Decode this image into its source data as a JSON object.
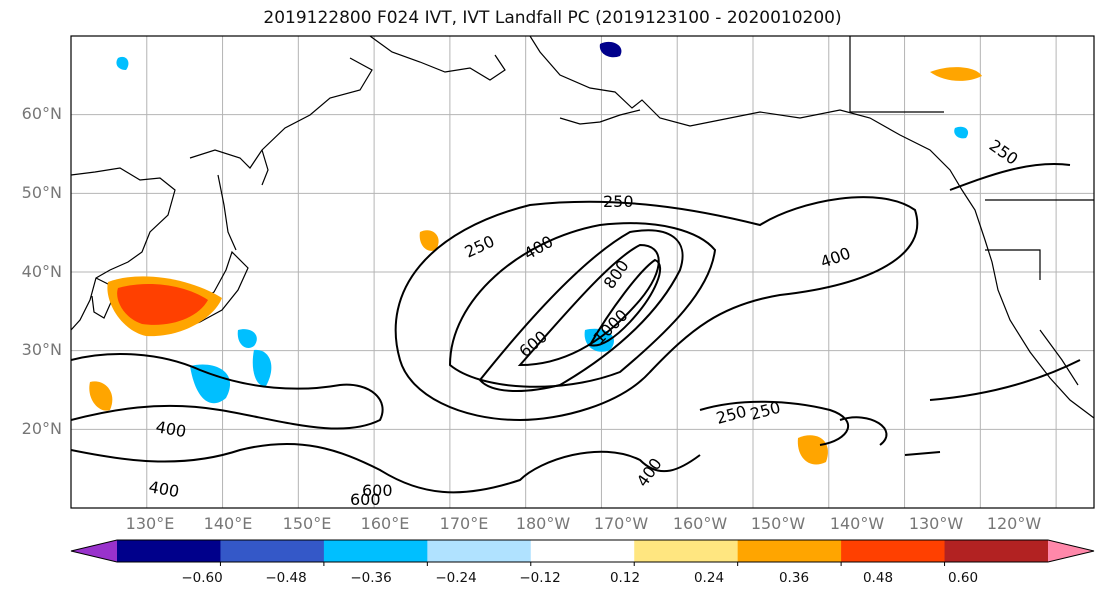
{
  "title": "2019122800 F024 IVT, IVT Landfall PC (2019123100 - 2020010200)",
  "map": {
    "projection": "PlateCarree",
    "lon_range": [
      120,
      255
    ],
    "lat_range": [
      10,
      70
    ],
    "gridlines": true,
    "lat_labels": [
      "60°N",
      "50°N",
      "40°N",
      "30°N",
      "20°N"
    ],
    "lon_labels": [
      "130°E",
      "140°E",
      "150°E",
      "160°E",
      "170°E",
      "180°W",
      "170°W",
      "160°W",
      "150°W",
      "140°W",
      "130°W",
      "120°W"
    ],
    "contour_labels": [
      "250",
      "250",
      "400",
      "400",
      "800",
      "600",
      "1000",
      "250",
      "250",
      "400",
      "400",
      "400",
      "600",
      "600",
      "250"
    ]
  },
  "colorbar": {
    "orientation": "horizontal",
    "extend": "both",
    "colors": [
      "#9932cc",
      "#00008b",
      "#3458c8",
      "#00bfff",
      "#b0e2ff",
      "#ffffff",
      "#ffe680",
      "#ffa500",
      "#ff4000",
      "#b22222",
      "#ff88aa"
    ],
    "tick_labels": [
      "−0.60",
      "−0.48",
      "−0.36",
      "−0.24",
      "−0.12",
      "0.12",
      "0.24",
      "0.36",
      "0.48",
      "0.60"
    ]
  }
}
